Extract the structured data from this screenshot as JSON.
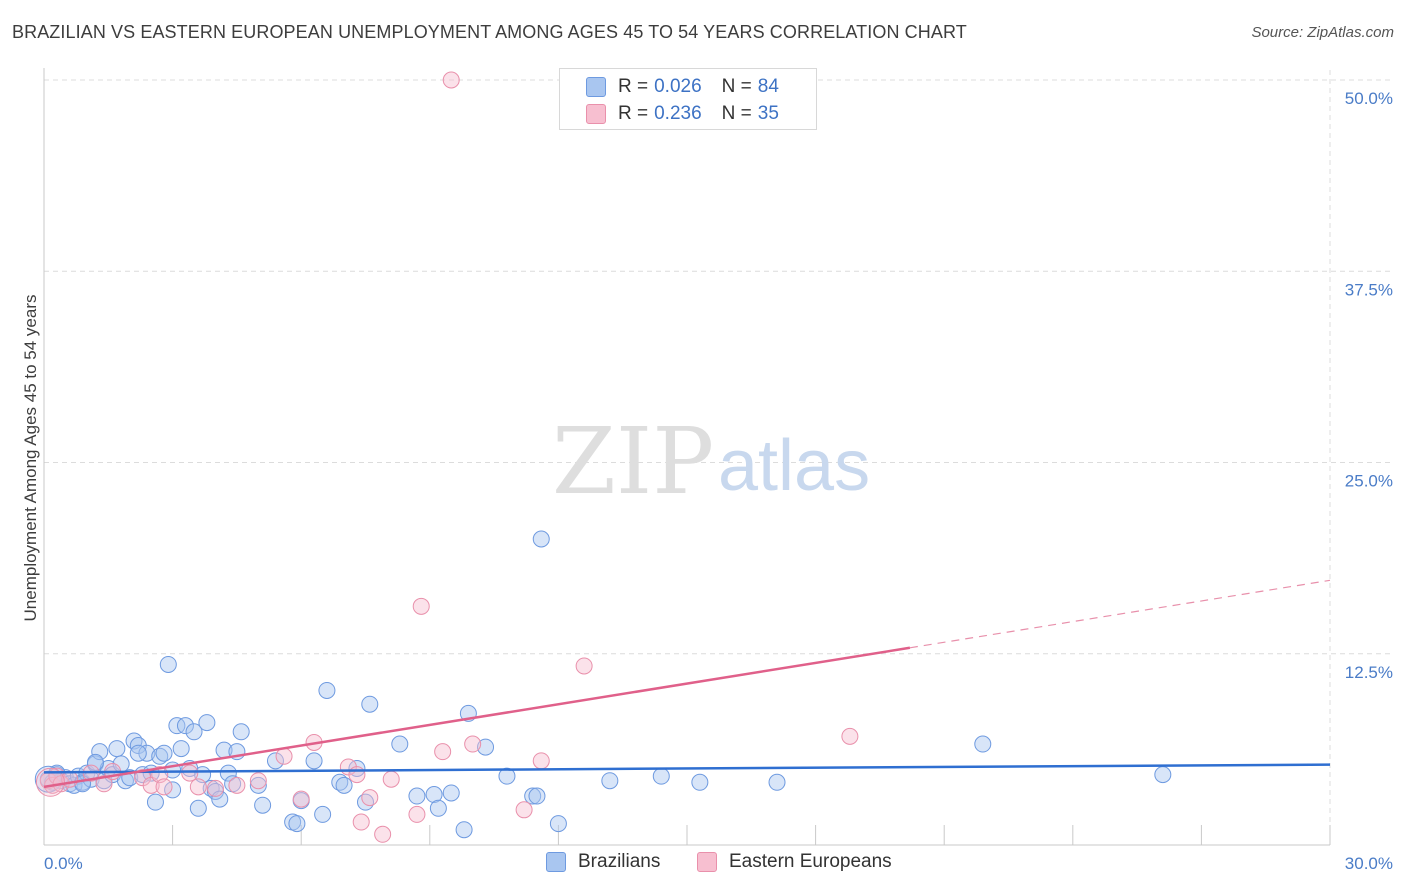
{
  "title": "BRAZILIAN VS EASTERN EUROPEAN UNEMPLOYMENT AMONG AGES 45 TO 54 YEARS CORRELATION CHART",
  "source": "Source: ZipAtlas.com",
  "watermark": {
    "zip": "ZIP",
    "atlas": "atlas"
  },
  "legend": {
    "rows": [
      {
        "r_label": "R = ",
        "r_value": "0.026",
        "n_label": "N = ",
        "n_value": "84",
        "color": "#a9c6f0",
        "stroke": "#6e9ae0"
      },
      {
        "r_label": "R = ",
        "r_value": "0.236",
        "n_label": "N = ",
        "n_value": "35",
        "color": "#f7bfd0",
        "stroke": "#e990ab"
      }
    ]
  },
  "bottom_legend": [
    {
      "label": "Brazilians",
      "color": "#a9c6f0",
      "stroke": "#6e9ae0"
    },
    {
      "label": "Eastern Europeans",
      "color": "#f7bfd0",
      "stroke": "#e990ab"
    }
  ],
  "chart_data": {
    "type": "scatter",
    "title": "BRAZILIAN VS EASTERN EUROPEAN UNEMPLOYMENT AMONG AGES 45 TO 54 YEARS CORRELATION CHART",
    "xlabel": "",
    "ylabel": "Unemployment Among Ages 45 to 54 years",
    "xlim": [
      0,
      30
    ],
    "ylim": [
      0,
      50
    ],
    "x_tick_labels": [
      "0.0%",
      "30.0%"
    ],
    "y_ticks": [
      12.5,
      25.0,
      37.5,
      50.0
    ],
    "y_tick_labels": [
      "12.5%",
      "25.0%",
      "37.5%",
      "50.0%"
    ],
    "grid": true,
    "series": [
      {
        "name": "Brazilians",
        "color": "#6e9ae0",
        "fill": "rgba(169,198,240,0.45)",
        "trend": {
          "x0": 0,
          "y0": 4.75,
          "x1": 30,
          "y1": 5.25,
          "dashed_from": null
        },
        "points": [
          [
            0.1,
            4.3
          ],
          [
            0.2,
            4.1
          ],
          [
            0.3,
            4.6
          ],
          [
            0.4,
            4.2
          ],
          [
            0.5,
            4.4
          ],
          [
            0.6,
            4.0
          ],
          [
            0.7,
            3.9
          ],
          [
            0.8,
            4.5
          ],
          [
            0.9,
            4.1
          ],
          [
            1.0,
            4.7
          ],
          [
            1.1,
            4.3
          ],
          [
            1.2,
            5.3
          ],
          [
            1.3,
            6.1
          ],
          [
            1.4,
            4.2
          ],
          [
            1.5,
            5.0
          ],
          [
            1.6,
            4.6
          ],
          [
            1.7,
            6.3
          ],
          [
            1.8,
            5.3
          ],
          [
            1.9,
            4.2
          ],
          [
            2.0,
            4.4
          ],
          [
            2.1,
            6.8
          ],
          [
            2.2,
            6.5
          ],
          [
            2.3,
            4.6
          ],
          [
            2.4,
            6.0
          ],
          [
            2.5,
            4.7
          ],
          [
            2.6,
            2.8
          ],
          [
            2.7,
            5.8
          ],
          [
            2.8,
            6.0
          ],
          [
            2.9,
            11.8
          ],
          [
            3.0,
            4.9
          ],
          [
            3.1,
            7.8
          ],
          [
            3.2,
            6.3
          ],
          [
            3.3,
            7.8
          ],
          [
            3.4,
            5.0
          ],
          [
            3.5,
            7.4
          ],
          [
            3.6,
            2.4
          ],
          [
            3.7,
            4.6
          ],
          [
            3.8,
            8.0
          ],
          [
            3.9,
            3.7
          ],
          [
            4.0,
            3.5
          ],
          [
            4.1,
            3.0
          ],
          [
            4.2,
            6.2
          ],
          [
            4.3,
            4.7
          ],
          [
            4.4,
            4.0
          ],
          [
            4.5,
            6.1
          ],
          [
            4.6,
            7.4
          ],
          [
            5.0,
            3.9
          ],
          [
            5.4,
            5.5
          ],
          [
            5.8,
            1.5
          ],
          [
            5.9,
            1.4
          ],
          [
            6.0,
            2.9
          ],
          [
            6.3,
            5.5
          ],
          [
            6.5,
            2.0
          ],
          [
            6.6,
            10.1
          ],
          [
            6.9,
            4.1
          ],
          [
            7.0,
            3.9
          ],
          [
            7.3,
            5.0
          ],
          [
            7.5,
            2.8
          ],
          [
            7.6,
            9.2
          ],
          [
            8.3,
            6.6
          ],
          [
            8.7,
            3.2
          ],
          [
            9.1,
            3.3
          ],
          [
            9.2,
            2.4
          ],
          [
            9.5,
            3.4
          ],
          [
            9.8,
            1.0
          ],
          [
            9.9,
            8.6
          ],
          [
            10.3,
            6.4
          ],
          [
            10.8,
            4.5
          ],
          [
            11.4,
            3.2
          ],
          [
            11.5,
            3.2
          ],
          [
            11.6,
            20.0
          ],
          [
            12.0,
            1.4
          ],
          [
            13.2,
            4.2
          ],
          [
            14.4,
            4.5
          ],
          [
            15.3,
            4.1
          ],
          [
            17.1,
            4.1
          ],
          [
            21.9,
            6.6
          ],
          [
            26.1,
            4.6
          ],
          [
            2.2,
            6.0
          ],
          [
            1.2,
            5.4
          ],
          [
            0.9,
            4.0
          ],
          [
            3.0,
            3.6
          ],
          [
            5.1,
            2.6
          ],
          [
            0.3,
            4.7
          ]
        ]
      },
      {
        "name": "Eastern Europeans",
        "color": "#e990ab",
        "fill": "rgba(247,191,208,0.45)",
        "trend": {
          "x0": 0,
          "y0": 3.8,
          "x1": 30,
          "y1": 17.3,
          "dashed_from": 20.2
        },
        "points": [
          [
            0.1,
            4.2
          ],
          [
            0.2,
            3.9
          ],
          [
            0.3,
            4.5
          ],
          [
            0.4,
            4.0
          ],
          [
            0.6,
            4.3
          ],
          [
            1.1,
            4.7
          ],
          [
            1.4,
            4.0
          ],
          [
            1.6,
            4.8
          ],
          [
            2.3,
            4.4
          ],
          [
            2.5,
            3.9
          ],
          [
            2.7,
            4.6
          ],
          [
            2.8,
            3.8
          ],
          [
            3.4,
            4.7
          ],
          [
            3.6,
            3.8
          ],
          [
            4.0,
            3.7
          ],
          [
            4.5,
            3.9
          ],
          [
            5.0,
            4.2
          ],
          [
            5.6,
            5.8
          ],
          [
            6.0,
            3.0
          ],
          [
            6.3,
            6.7
          ],
          [
            7.1,
            5.1
          ],
          [
            7.3,
            4.6
          ],
          [
            7.6,
            3.1
          ],
          [
            7.9,
            0.7
          ],
          [
            8.1,
            4.3
          ],
          [
            8.7,
            2.0
          ],
          [
            8.8,
            15.6
          ],
          [
            9.3,
            6.1
          ],
          [
            9.5,
            50.0
          ],
          [
            10.0,
            6.6
          ],
          [
            11.2,
            2.3
          ],
          [
            11.6,
            5.5
          ],
          [
            12.6,
            11.7
          ],
          [
            18.8,
            7.1
          ],
          [
            7.4,
            1.5
          ]
        ]
      }
    ]
  }
}
